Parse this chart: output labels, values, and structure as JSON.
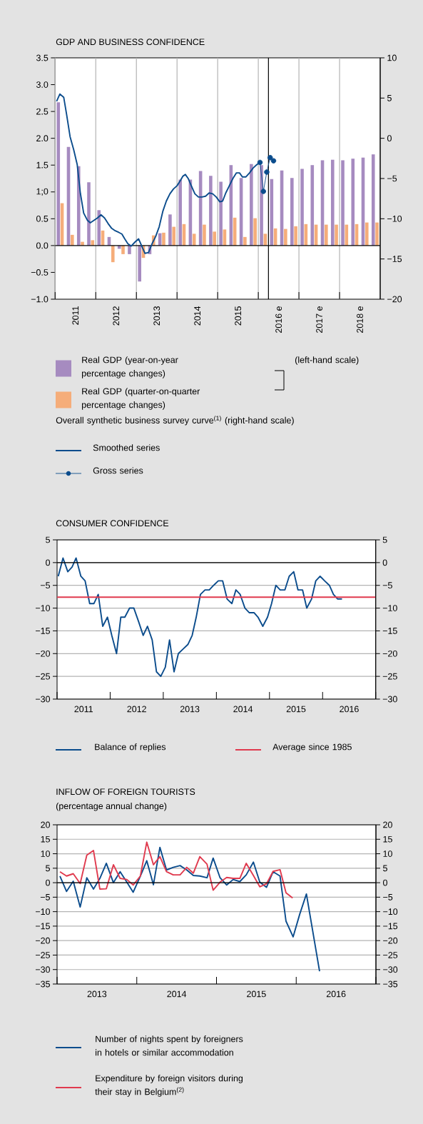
{
  "chart_data": [
    {
      "type": "bar",
      "title": "GDP AND BUSINESS CONFIDENCE",
      "x": [
        2011.125,
        2011.375,
        2011.625,
        2011.875,
        2012.125,
        2012.375,
        2012.625,
        2012.875,
        2013.125,
        2013.375,
        2013.625,
        2013.875,
        2014.125,
        2014.375,
        2014.625,
        2014.875,
        2015.125,
        2015.375,
        2015.625,
        2015.875,
        2016.125,
        2016.375,
        2016.625,
        2016.875,
        2017.125,
        2017.375,
        2017.625,
        2017.875,
        2018.125,
        2018.375,
        2018.625,
        2018.875
      ],
      "xlim": [
        2011,
        2019
      ],
      "xticks": [
        {
          "value": 2011,
          "label": null
        },
        {
          "value": 2011.5,
          "label": "2011"
        },
        {
          "value": 2012,
          "label": null
        },
        {
          "value": 2012.5,
          "label": "2012"
        },
        {
          "value": 2013,
          "label": null
        },
        {
          "value": 2013.5,
          "label": "2013"
        },
        {
          "value": 2014,
          "label": null
        },
        {
          "value": 2014.5,
          "label": "2014"
        },
        {
          "value": 2015,
          "label": null
        },
        {
          "value": 2015.5,
          "label": "2015"
        },
        {
          "value": 2016,
          "label": null
        },
        {
          "value": 2016.5,
          "label": "2016 e"
        },
        {
          "value": 2017,
          "label": null
        },
        {
          "value": 2017.5,
          "label": "2017 e"
        },
        {
          "value": 2018,
          "label": null
        },
        {
          "value": 2018.5,
          "label": "2018 e"
        }
      ],
      "ylim": [
        -1,
        3.5
      ],
      "yticks": [
        {
          "value": 3.5,
          "label": "3.5"
        },
        {
          "value": 3,
          "label": "3.0"
        },
        {
          "value": 2.5,
          "label": "2.5"
        },
        {
          "value": 2,
          "label": "2.0"
        },
        {
          "value": 1.5,
          "label": "1.5"
        },
        {
          "value": 1,
          "label": "1;0"
        },
        {
          "value": 0.5,
          "label": "0.5"
        },
        {
          "value": 0,
          "label": "0.0"
        },
        {
          "value": -0.5,
          "label": "−0.5"
        },
        {
          "value": -1,
          "label": "−1.0"
        }
      ],
      "y2lim": [
        -20,
        10
      ],
      "y2ticks": [
        10,
        5,
        0,
        {
          "value": -5,
          "label": "−5"
        },
        {
          "value": -10,
          "label": "−10"
        },
        {
          "value": -15,
          "label": "−15"
        },
        {
          "value": -20,
          "label": "−20"
        }
      ],
      "grid": "x",
      "legend": "bottom",
      "ref_lines": [
        {
          "axis": "y",
          "value": 0,
          "color": "#000000"
        },
        {
          "axis": "x",
          "value": 2016.25,
          "color": "#000000"
        }
      ],
      "annotations": [
        "(left-hand scale)",
        "Overall synthetic business survey curve$^{(1)}$ (right-hand scale)"
      ],
      "series": [
        {
          "name": "Real GDP (year-on-year percentage changes)",
          "color": "#a68bc0",
          "values": [
            2.67,
            1.84,
            1.48,
            1.18,
            0.66,
            0.16,
            -0.06,
            -0.16,
            -0.67,
            -0.16,
            0.23,
            0.58,
            1.23,
            1.23,
            1.39,
            1.3,
            1.19,
            1.5,
            1.26,
            1.52,
            1.5,
            1.24,
            1.4,
            1.26,
            1.43,
            1.5,
            1.59,
            1.6,
            1.59,
            1.62,
            1.64,
            1.7
          ]
        },
        {
          "name": "Real GDP (quarter-on-quarter percentage changes)",
          "color": "#f5ad7a",
          "values": [
            0.79,
            0.2,
            0.07,
            0.1,
            0.28,
            -0.31,
            -0.16,
            0.0,
            -0.23,
            0.19,
            0.24,
            0.35,
            0.4,
            0.22,
            0.39,
            0.26,
            0.3,
            0.52,
            0.16,
            0.51,
            0.22,
            0.32,
            0.31,
            0.36,
            0.4,
            0.39,
            0.39,
            0.39,
            0.39,
            0.4,
            0.43,
            0.43
          ]
        },
        {
          "name": "Smoothed series",
          "type": "line",
          "axis": "y2",
          "marker": "none",
          "color": "#0b4c8c",
          "x": [
            2011.035,
            2011.117,
            2011.211,
            2011.281,
            2011.368,
            2011.456,
            2011.544,
            2011.62,
            2011.702,
            2011.795,
            2011.865,
            2011.953,
            2012.041,
            2012.129,
            2012.216,
            2012.304,
            2012.392,
            2012.48,
            2012.567,
            2012.643,
            2012.713,
            2012.789,
            2012.871,
            2012.965,
            2013.053,
            2013.211,
            2013.298,
            2013.386,
            2013.474,
            2013.561,
            2013.649,
            2013.737,
            2013.825,
            2013.912,
            2014.0,
            2014.088,
            2014.146,
            2014.205,
            2014.275,
            2014.351,
            2014.439,
            2014.526,
            2014.614,
            2014.702,
            2014.789,
            2014.877,
            2014.965,
            2015.053,
            2015.123,
            2015.199,
            2015.287,
            2015.374,
            2015.462,
            2015.538,
            2015.608,
            2015.696,
            2015.784,
            2015.871,
            2015.959,
            2016.035
          ],
          "values": [
            4.6,
            5.5,
            5.1,
            3.0,
            0.2,
            -1.4,
            -3.3,
            -6.8,
            -9.3,
            -10.2,
            -10.5,
            -10.2,
            -9.9,
            -9.5,
            -9.9,
            -10.6,
            -11.2,
            -11.5,
            -11.7,
            -11.9,
            -12.5,
            -13.1,
            -13.4,
            -12.9,
            -12.5,
            -14.3,
            -14.2,
            -13.1,
            -12.2,
            -11.0,
            -9.1,
            -7.8,
            -6.9,
            -6.3,
            -5.9,
            -5.2,
            -4.7,
            -4.5,
            -5.0,
            -5.9,
            -6.9,
            -7.3,
            -7.3,
            -7.2,
            -6.8,
            -6.9,
            -7.3,
            -7.9,
            -7.8,
            -6.8,
            -5.9,
            -5.0,
            -4.3,
            -4.3,
            -4.8,
            -4.8,
            -4.3,
            -3.7,
            -3.3,
            -3.0
          ]
        },
        {
          "name": "Gross series",
          "type": "line",
          "axis": "y2",
          "marker": "circle",
          "color": "#0b4c8c",
          "x": [
            2016.042,
            2016.125,
            2016.208,
            2016.292,
            2016.375
          ],
          "values": [
            -3.0,
            -6.6,
            -4.2,
            -2.4,
            -2.8
          ]
        }
      ]
    },
    {
      "type": "line",
      "title": "CONSUMER CONFIDENCE",
      "xlim": [
        2011,
        2017
      ],
      "xticks": [
        {
          "value": 2011,
          "label": null
        },
        {
          "value": 2011.5,
          "label": "2011"
        },
        {
          "value": 2012,
          "label": null
        },
        {
          "value": 2012.5,
          "label": "2012"
        },
        {
          "value": 2013,
          "label": null
        },
        {
          "value": 2013.5,
          "label": "2013"
        },
        {
          "value": 2014,
          "label": null
        },
        {
          "value": 2014.5,
          "label": "2014"
        },
        {
          "value": 2015,
          "label": null
        },
        {
          "value": 2015.5,
          "label": "2015"
        },
        {
          "value": 2016,
          "label": null
        },
        {
          "value": 2016.5,
          "label": "2016"
        },
        {
          "value": 2017,
          "label": null
        }
      ],
      "ylim": [
        -30,
        5
      ],
      "yticks": [
        5,
        0,
        {
          "value": -5,
          "label": "−5"
        },
        {
          "value": -10,
          "label": "−10"
        },
        {
          "value": -15,
          "label": "−15"
        },
        {
          "value": -20,
          "label": "−20"
        },
        {
          "value": -25,
          "label": "−25"
        },
        {
          "value": -30,
          "label": "−30"
        }
      ],
      "y2lim": [
        -30,
        5
      ],
      "y2ticks": [
        5,
        0,
        {
          "value": -5,
          "label": "−5"
        },
        {
          "value": -10,
          "label": "−10"
        },
        {
          "value": -15,
          "label": "−15"
        },
        {
          "value": -20,
          "label": "−20"
        },
        {
          "value": -25,
          "label": "−25"
        },
        {
          "value": -30,
          "label": "−30"
        }
      ],
      "grid": "y",
      "legend": "bottom",
      "ref_lines": [
        {
          "axis": "y",
          "value": 0,
          "color": "#000000"
        }
      ],
      "series": [
        {
          "name": "Balance of replies",
          "color": "#0b4c8c",
          "x": [
            2011.022,
            2011.112,
            2011.202,
            2011.282,
            2011.358,
            2011.448,
            2011.528,
            2011.614,
            2011.694,
            2011.775,
            2011.86,
            2011.949,
            2012.03,
            2012.12,
            2012.2,
            2012.276,
            2012.366,
            2012.446,
            2012.536,
            2012.621,
            2012.702,
            2012.791,
            2012.872,
            2012.953,
            2013.038,
            2013.118,
            2013.203,
            2013.284,
            2013.373,
            2013.463,
            2013.544,
            2013.62,
            2013.7,
            2013.786,
            2013.866,
            2013.947,
            2014.036,
            2014.117,
            2014.202,
            2014.292,
            2014.368,
            2014.448,
            2014.538,
            2014.618,
            2014.708,
            2014.784,
            2014.874,
            2014.963,
            2015.039,
            2015.12,
            2015.201,
            2015.29,
            2015.371,
            2015.456,
            2015.536,
            2015.622,
            2015.702,
            2015.792,
            2015.872,
            2015.953,
            2016.038,
            2016.128,
            2016.204,
            2016.284,
            2016.365
          ],
          "values": [
            -3,
            1,
            -2,
            -1,
            1,
            -3,
            -4,
            -9,
            -9,
            -7,
            -14,
            -12,
            -16,
            -20,
            -12,
            -12,
            -10,
            -10,
            -13,
            -16,
            -14,
            -17,
            -24,
            -25,
            -23,
            -17,
            -24,
            -20,
            -19,
            -18,
            -16,
            -12,
            -7,
            -6,
            -6,
            -5,
            -4,
            -4,
            -8,
            -9,
            -6,
            -7,
            -10,
            -11,
            -11,
            -12,
            -14,
            -12,
            -9,
            -5,
            -6,
            -6,
            -3,
            -2,
            -6,
            -6,
            -10,
            -8,
            -4,
            -3,
            -4,
            -5,
            -7,
            -8,
            -8
          ]
        },
        {
          "name": "Average since 1985",
          "color": "#e03a4e",
          "x": [
            2011,
            2017
          ],
          "values": [
            -7.6,
            -7.6
          ]
        }
      ]
    },
    {
      "type": "line",
      "title": "INFLOW OF FOREIGN TOURISTS",
      "subtitle": "(percentage annual change)",
      "xlim": [
        2013,
        2017
      ],
      "xticks": [
        {
          "value": 2013,
          "label": null
        },
        {
          "value": 2013.5,
          "label": "2013"
        },
        {
          "value": 2014,
          "label": null
        },
        {
          "value": 2014.5,
          "label": "2014"
        },
        {
          "value": 2015,
          "label": null
        },
        {
          "value": 2015.5,
          "label": "2015"
        },
        {
          "value": 2016,
          "label": null
        },
        {
          "value": 2016.5,
          "label": "2016"
        },
        {
          "value": 2017,
          "label": null
        }
      ],
      "ylim": [
        -35,
        20
      ],
      "yticks": [
        20,
        15,
        10,
        5,
        0,
        {
          "value": -5,
          "label": "−5"
        },
        {
          "value": -10,
          "label": "−10"
        },
        {
          "value": -15,
          "label": "−15"
        },
        {
          "value": -20,
          "label": "−20"
        },
        {
          "value": -25,
          "label": "−25"
        },
        {
          "value": -30,
          "label": "−30"
        },
        {
          "value": -35,
          "label": "−35"
        }
      ],
      "y2lim": [
        -35,
        20
      ],
      "y2ticks": [
        20,
        15,
        10,
        5,
        0,
        {
          "value": -5,
          "label": "−5"
        },
        {
          "value": -10,
          "label": "−10"
        },
        {
          "value": -15,
          "label": "−15"
        },
        {
          "value": -20,
          "label": "−20"
        },
        {
          "value": -25,
          "label": "−25"
        },
        {
          "value": -30,
          "label": "−30"
        },
        {
          "value": -35,
          "label": "−35"
        }
      ],
      "grid": "y",
      "legend": "bottom",
      "ref_lines": [
        {
          "axis": "y",
          "value": 0,
          "color": "#000000"
        }
      ],
      "series": [
        {
          "name": "Number of nights spent by foreigners in hotels or similar accommodation",
          "color": "#0b4c8c",
          "x": [
            2013.036,
            2013.119,
            2013.203,
            2013.29,
            2013.373,
            2013.457,
            2013.537,
            2013.618,
            2013.707,
            2013.791,
            2013.875,
            2013.955,
            2014.045,
            2014.125,
            2014.209,
            2014.29,
            2014.373,
            2014.457,
            2014.543,
            2014.627,
            2014.71,
            2014.791,
            2014.881,
            2014.958,
            2015.045,
            2015.128,
            2015.209,
            2015.293,
            2015.373,
            2015.463,
            2015.543,
            2015.627,
            2015.71,
            2015.797,
            2015.872,
            2015.961,
            2016.045,
            2016.128,
            2016.293
          ],
          "values": [
            2.3,
            -3.0,
            0.5,
            -8.4,
            1.7,
            -2.2,
            1.5,
            6.7,
            0.0,
            3.8,
            0.2,
            -3.3,
            2.3,
            7.6,
            -0.7,
            12.2,
            4.4,
            5.3,
            5.9,
            4.4,
            2.5,
            2.3,
            1.7,
            8.5,
            1.7,
            -0.8,
            1.1,
            0.4,
            2.7,
            7.1,
            0.2,
            -1.6,
            3.8,
            2.3,
            -13.3,
            -18.7,
            -10.8,
            -3.9,
            -30.6
          ]
        },
        {
          "name": "Expenditure by foreign visitors during their stay in Belgium$^{(2)}$",
          "color": "#e03a4e",
          "x": [
            2013.036,
            2013.119,
            2013.203,
            2013.29,
            2013.373,
            2013.457,
            2013.537,
            2013.618,
            2013.707,
            2013.791,
            2013.875,
            2013.955,
            2014.045,
            2014.125,
            2014.209,
            2014.29,
            2014.373,
            2014.457,
            2014.543,
            2014.627,
            2014.71,
            2014.791,
            2014.881,
            2014.958,
            2015.045,
            2015.128,
            2015.209,
            2015.293,
            2015.373,
            2015.463,
            2015.543,
            2015.627,
            2015.71,
            2015.797,
            2015.872,
            2015.955
          ],
          "values": [
            3.8,
            2.3,
            3.1,
            -0.3,
            9.5,
            11.1,
            -2.2,
            -2.1,
            6.2,
            1.5,
            1.1,
            -0.8,
            2.3,
            14.0,
            6.2,
            9.0,
            3.8,
            2.7,
            2.7,
            5.3,
            3.3,
            9.0,
            6.4,
            -2.6,
            0.2,
            1.8,
            1.5,
            1.5,
            6.7,
            2.5,
            -1.4,
            -0.4,
            3.9,
            4.5,
            -3.5,
            -5.3
          ]
        }
      ]
    }
  ]
}
